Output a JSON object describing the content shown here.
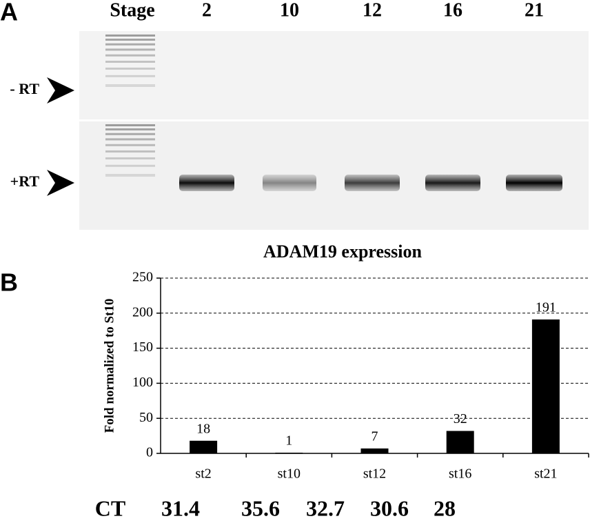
{
  "panel_a": {
    "label": "A",
    "header": "Stage",
    "lanes": [
      "2",
      "10",
      "12",
      "16",
      "21"
    ],
    "rows": [
      "- RT",
      "+RT"
    ]
  },
  "panel_b": {
    "label": "B"
  },
  "chart_data": {
    "type": "bar",
    "title": "ADAM19 expression",
    "y_label": "Fold normalized to St10",
    "categories": [
      "st2",
      "st10",
      "st12",
      "st16",
      "st21"
    ],
    "values": [
      18,
      1,
      7,
      32,
      191
    ],
    "color": "#000000",
    "ylim": [
      0,
      250
    ],
    "yticks": [
      0,
      50,
      100,
      150,
      200,
      250
    ],
    "grid": true
  },
  "ct": {
    "label": "CT",
    "values": [
      31.4,
      35.6,
      32.7,
      30.6,
      28
    ]
  }
}
